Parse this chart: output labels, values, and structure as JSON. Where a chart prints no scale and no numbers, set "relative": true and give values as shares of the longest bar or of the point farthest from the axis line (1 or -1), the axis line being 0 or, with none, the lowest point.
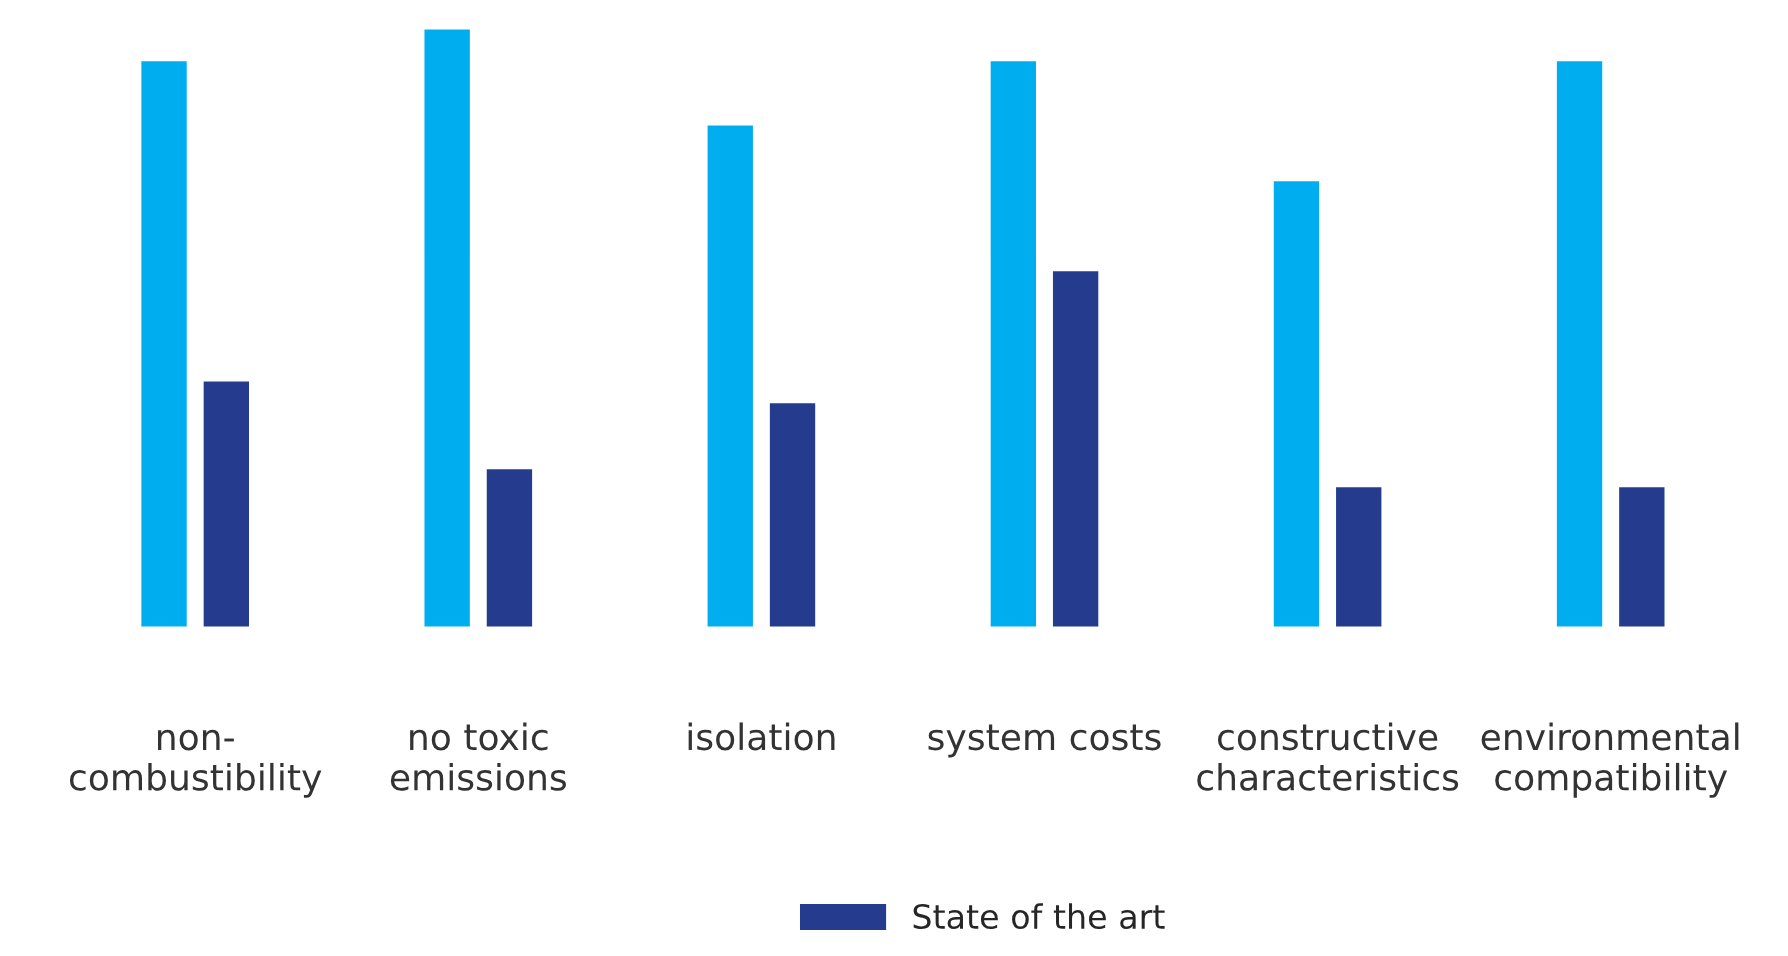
{
  "chart_data": {
    "type": "bar",
    "relative": true,
    "legend": "bottom",
    "grid": false,
    "categories": [
      "non-\ncombustibility",
      "no toxic\nemissions",
      "isolation",
      "system costs",
      "constructive\ncharacteristics",
      "environmental\ncompatibility"
    ],
    "series": [
      {
        "color": "#00aeef",
        "values": [
          0.947,
          1,
          0.84,
          0.947,
          0.747,
          0.947
        ]
      },
      {
        "name": "State of the art",
        "color": "#253c8e",
        "values": [
          0.413,
          0.267,
          0.377,
          0.597,
          0.237,
          0.237
        ]
      }
    ]
  }
}
